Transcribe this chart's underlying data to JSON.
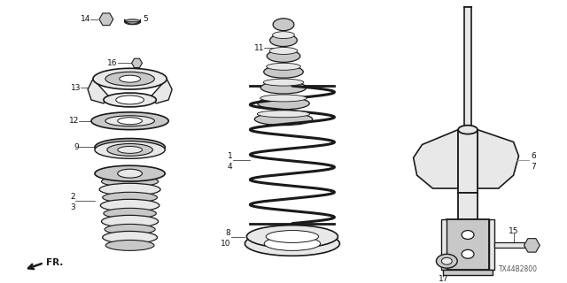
{
  "bg_color": "#ffffff",
  "line_color": "#1a1a1a",
  "label_color": "#111111",
  "gray_fill": "#c8c8c8",
  "light_fill": "#e8e8e8",
  "part_number_text": "TX44B2800",
  "figsize": [
    6.4,
    3.2
  ],
  "dpi": 100
}
